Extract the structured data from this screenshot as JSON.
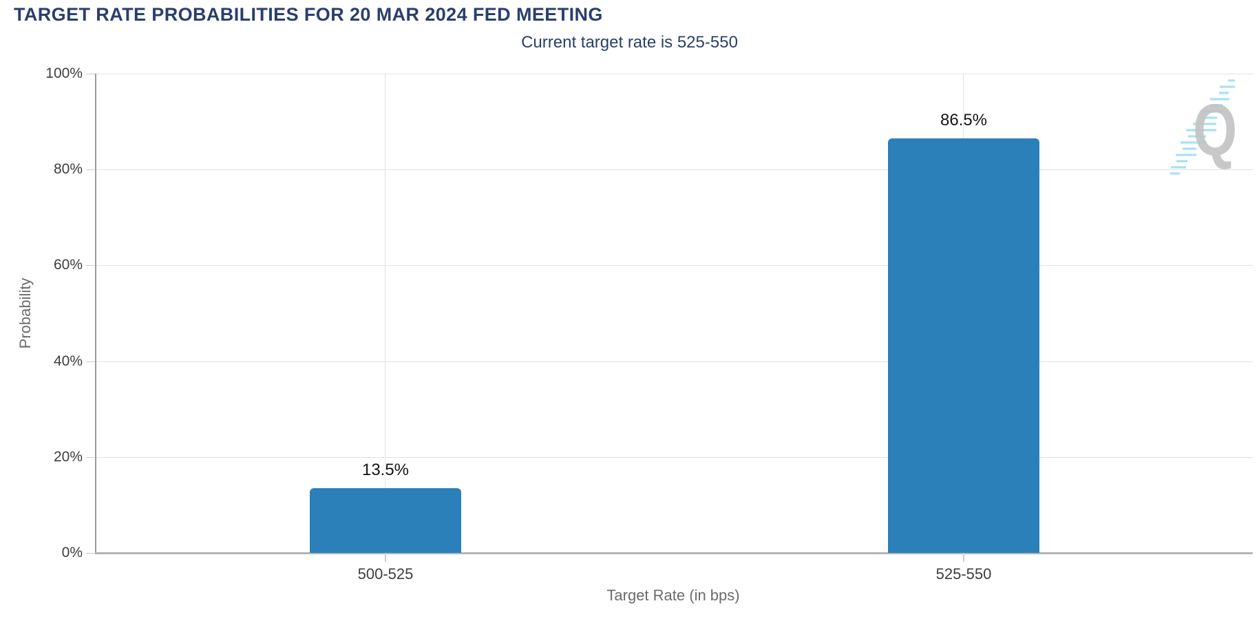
{
  "page": {
    "title": "TARGET RATE PROBABILITIES FOR 20 MAR 2024 FED MEETING",
    "subtitle": "Current target rate is 525-550"
  },
  "watermark": {
    "icon": "q-logo-watermark",
    "letter": "Q"
  },
  "colors": {
    "title_navy": "#2a3e6e",
    "bar_blue": "#2b80b9",
    "gridline_gray": "#e2e2e2",
    "axis_gray": "#9b9b9b",
    "tick_text_gray": "#3d3d3d",
    "axis_title_gray": "#6b6b6b",
    "watermark_gray": "#c3c3c3",
    "watermark_cyan": "#9adcf3"
  },
  "chart_data": {
    "type": "bar",
    "title": "TARGET RATE PROBABILITIES FOR 20 MAR 2024 FED MEETING",
    "subtitle": "Current target rate is 525-550",
    "categories": [
      "500-525",
      "525-550"
    ],
    "values": [
      13.5,
      86.5
    ],
    "value_labels": [
      "13.5%",
      "86.5%"
    ],
    "xlabel": "Target Rate (in bps)",
    "ylabel": "Probability",
    "ylim": [
      0,
      100
    ],
    "yticks": [
      0,
      20,
      40,
      60,
      80,
      100
    ],
    "ytick_labels": [
      "0%",
      "20%",
      "40%",
      "60%",
      "80%",
      "100%"
    ],
    "grid": true,
    "legend_position": "none",
    "bar_color": "#2b80b9"
  }
}
